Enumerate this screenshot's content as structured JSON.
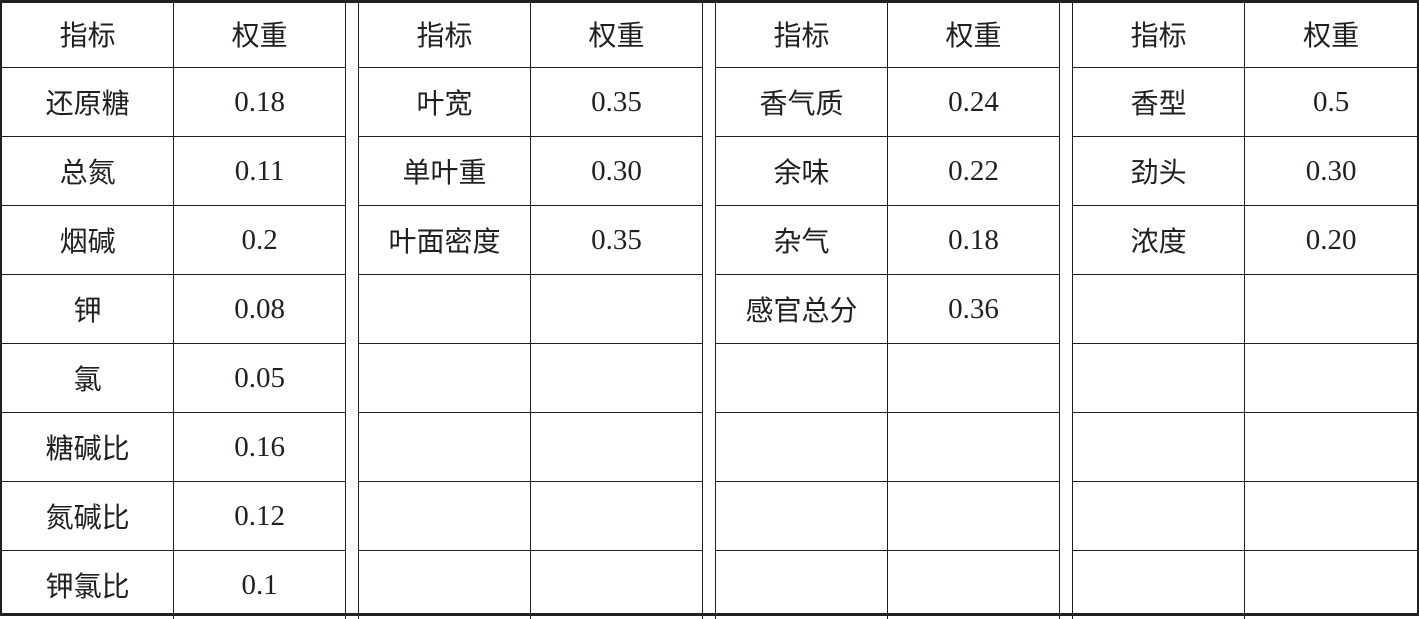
{
  "table": {
    "groups": [
      {
        "header": [
          "指标",
          "权重"
        ],
        "rows": [
          [
            "还原糖",
            "0.18"
          ],
          [
            "总氮",
            "0.11"
          ],
          [
            "烟碱",
            "0.2"
          ],
          [
            "钾",
            "0.08"
          ],
          [
            "氯",
            "0.05"
          ],
          [
            "糖碱比",
            "0.16"
          ],
          [
            "氮碱比",
            "0.12"
          ],
          [
            "钾氯比",
            "0.1"
          ]
        ]
      },
      {
        "header": [
          "指标",
          "权重"
        ],
        "rows": [
          [
            "叶宽",
            "0.35"
          ],
          [
            "单叶重",
            "0.30"
          ],
          [
            "叶面密度",
            "0.35"
          ],
          [
            "",
            ""
          ],
          [
            "",
            ""
          ],
          [
            "",
            ""
          ],
          [
            "",
            ""
          ],
          [
            "",
            ""
          ]
        ]
      },
      {
        "header": [
          "指标",
          "权重"
        ],
        "rows": [
          [
            "香气质",
            "0.24"
          ],
          [
            "余味",
            "0.22"
          ],
          [
            "杂气",
            "0.18"
          ],
          [
            "感官总分",
            "0.36"
          ],
          [
            "",
            ""
          ],
          [
            "",
            ""
          ],
          [
            "",
            ""
          ],
          [
            "",
            ""
          ]
        ]
      },
      {
        "header": [
          "指标",
          "权重"
        ],
        "rows": [
          [
            "香型",
            "0.5"
          ],
          [
            "劲头",
            "0.30"
          ],
          [
            "浓度",
            "0.20"
          ],
          [
            "",
            ""
          ],
          [
            "",
            ""
          ],
          [
            "",
            ""
          ],
          [
            "",
            ""
          ],
          [
            "",
            ""
          ]
        ]
      }
    ]
  }
}
